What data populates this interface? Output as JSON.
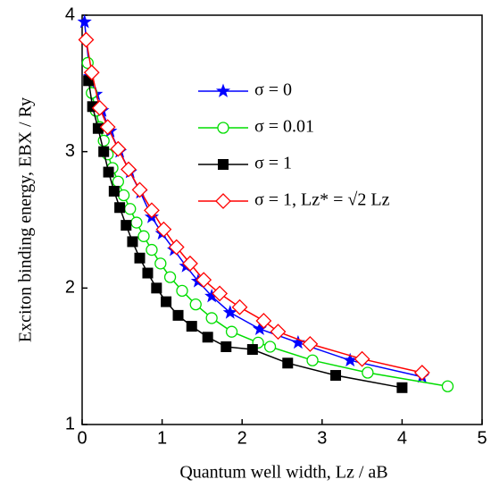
{
  "chart_data": {
    "type": "line",
    "xlabel": "Quantum well width, Lz / aB",
    "ylabel": "Exciton binding energy,  EBX / Ry",
    "xlim": [
      0,
      5
    ],
    "ylim": [
      1,
      4
    ],
    "xticks": [
      0,
      1,
      2,
      3,
      4,
      5
    ],
    "yticks": [
      1,
      2,
      3,
      4
    ],
    "legend": "upper right",
    "series": [
      {
        "name": "σ = 0",
        "color": "#0000ff",
        "marker": "star",
        "x": [
          0.03,
          0.1,
          0.17,
          0.25,
          0.35,
          0.47,
          0.6,
          0.73,
          0.87,
          1.0,
          1.15,
          1.3,
          1.45,
          1.62,
          1.85,
          2.22,
          2.7,
          3.35,
          4.25
        ],
        "values": [
          3.95,
          3.55,
          3.42,
          3.3,
          3.15,
          3.0,
          2.85,
          2.7,
          2.52,
          2.4,
          2.28,
          2.16,
          2.05,
          1.94,
          1.82,
          1.7,
          1.6,
          1.47,
          1.35
        ]
      },
      {
        "name": "σ = 0.01",
        "color": "#00dd00",
        "marker": "circle",
        "x": [
          0.07,
          0.12,
          0.17,
          0.22,
          0.27,
          0.32,
          0.38,
          0.45,
          0.52,
          0.6,
          0.68,
          0.77,
          0.87,
          0.98,
          1.1,
          1.25,
          1.42,
          1.62,
          1.87,
          2.2,
          2.35,
          2.88,
          3.57,
          4.57
        ],
        "values": [
          3.65,
          3.43,
          3.3,
          3.18,
          3.08,
          2.98,
          2.88,
          2.78,
          2.68,
          2.58,
          2.48,
          2.38,
          2.28,
          2.18,
          2.08,
          1.98,
          1.88,
          1.78,
          1.68,
          1.6,
          1.57,
          1.47,
          1.38,
          1.28
        ]
      },
      {
        "name": "σ = 1",
        "color": "#000000",
        "marker": "square",
        "x": [
          0.08,
          0.13,
          0.2,
          0.27,
          0.33,
          0.4,
          0.47,
          0.55,
          0.63,
          0.72,
          0.82,
          0.93,
          1.05,
          1.2,
          1.37,
          1.57,
          1.8,
          2.13,
          2.57,
          3.17,
          4.0
        ],
        "values": [
          3.52,
          3.33,
          3.17,
          3.0,
          2.85,
          2.71,
          2.59,
          2.46,
          2.34,
          2.22,
          2.11,
          2.0,
          1.9,
          1.8,
          1.72,
          1.64,
          1.57,
          1.55,
          1.45,
          1.36,
          1.27
        ]
      },
      {
        "name": "σ = 1, Lz* = √2 Lz",
        "color": "#ff0000",
        "marker": "diamond",
        "x": [
          0.05,
          0.12,
          0.22,
          0.32,
          0.45,
          0.58,
          0.72,
          0.87,
          1.02,
          1.18,
          1.35,
          1.52,
          1.72,
          1.97,
          2.27,
          2.45,
          2.85,
          3.5,
          4.25
        ],
        "values": [
          3.82,
          3.58,
          3.32,
          3.18,
          3.02,
          2.87,
          2.72,
          2.57,
          2.43,
          2.3,
          2.18,
          2.06,
          1.96,
          1.86,
          1.76,
          1.68,
          1.59,
          1.48,
          1.38
        ]
      }
    ]
  }
}
